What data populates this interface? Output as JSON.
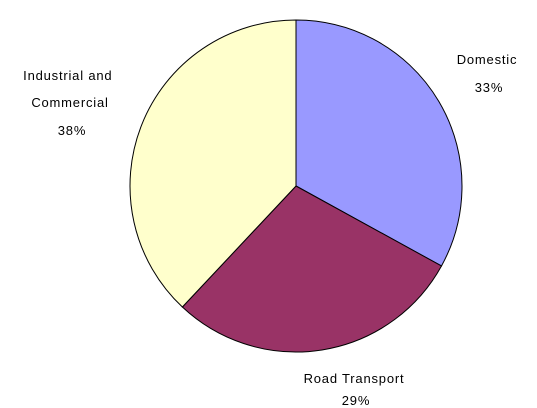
{
  "chart_data": {
    "type": "pie",
    "slices": [
      {
        "label": "Domestic",
        "value": 33,
        "value_label": "33%",
        "color": "#9999ff"
      },
      {
        "label": "Road Transport",
        "value": 29,
        "value_label": "29%",
        "color": "#993366"
      },
      {
        "label": "Industrial and Commercial",
        "value": 38,
        "value_label": "38%",
        "color": "#ffffcc"
      }
    ],
    "title": "",
    "legend": "none",
    "start": "12 o'clock",
    "direction": "clockwise"
  }
}
